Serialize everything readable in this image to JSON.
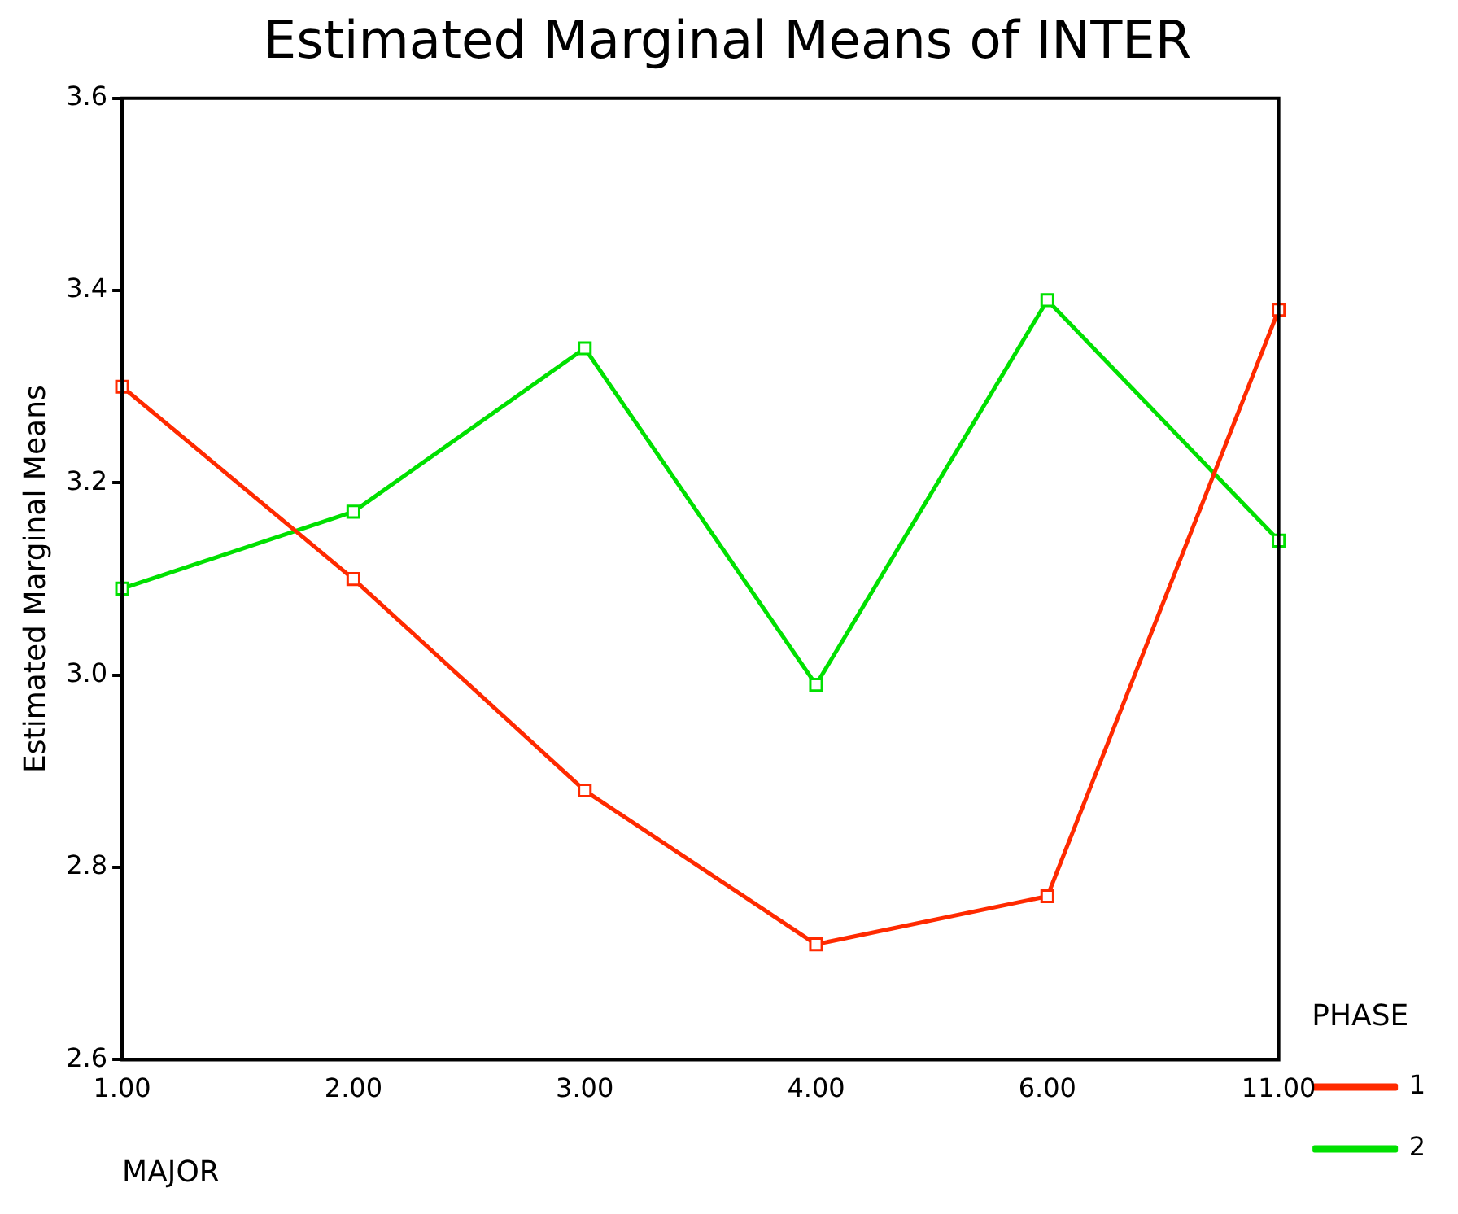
{
  "chart_data": {
    "type": "line",
    "title": "Estimated Marginal Means of INTER",
    "xlabel": "MAJOR",
    "ylabel": "Estimated Marginal Means",
    "legend_title": "PHASE",
    "categories": [
      "1.00",
      "2.00",
      "3.00",
      "4.00",
      "6.00",
      "11.00"
    ],
    "series": [
      {
        "name": "1",
        "color": "#ff2a00",
        "values": [
          3.3,
          3.1,
          2.88,
          2.72,
          2.77,
          3.38
        ]
      },
      {
        "name": "2",
        "color": "#00e000",
        "values": [
          3.09,
          3.17,
          3.34,
          2.99,
          3.39,
          3.14
        ]
      }
    ],
    "ylim": [
      2.6,
      3.6
    ],
    "yticks": [
      {
        "value": 2.6,
        "label": "2.6"
      },
      {
        "value": 2.8,
        "label": "2.8"
      },
      {
        "value": 3.0,
        "label": "3.0"
      },
      {
        "value": 3.2,
        "label": "3.2"
      },
      {
        "value": 3.4,
        "label": "3.4"
      },
      {
        "value": 3.6,
        "label": "3.6"
      }
    ],
    "grid": false,
    "legend": "right",
    "marker": "square",
    "line_style": "solid"
  }
}
